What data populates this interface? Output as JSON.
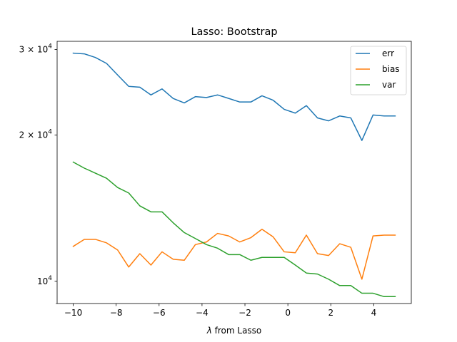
{
  "chart_data": {
    "type": "line",
    "title": "Lasso: Bootstrap",
    "xlabel_symbol": "λ",
    "xlabel_rest": " from Lasso",
    "ylabel": "",
    "yscale": "log",
    "xlim": [
      -10.75,
      5.75
    ],
    "ylim": [
      9000,
      31200
    ],
    "x_ticks": [
      -10,
      -8,
      -6,
      -4,
      -2,
      0,
      2,
      4
    ],
    "x_tick_labels": [
      "−10",
      "−8",
      "−6",
      "−4",
      "−2",
      "0",
      "2",
      "4"
    ],
    "y_ticks": [
      {
        "value": 10000,
        "base": "10",
        "exp": "4",
        "coef": ""
      },
      {
        "value": 20000,
        "base": "10",
        "exp": "4",
        "coef": "2 × "
      },
      {
        "value": 30000,
        "base": "10",
        "exp": "4",
        "coef": "3 × "
      }
    ],
    "grid": false,
    "legend_position": "top-right",
    "x": [
      -10.0,
      -9.483,
      -8.966,
      -8.448,
      -7.931,
      -7.414,
      -6.897,
      -6.379,
      -5.862,
      -5.345,
      -4.828,
      -4.31,
      -3.793,
      -3.276,
      -2.759,
      -2.241,
      -1.724,
      -1.207,
      -0.69,
      -0.172,
      0.345,
      0.862,
      1.379,
      1.897,
      2.414,
      2.931,
      3.448,
      3.966,
      4.483,
      5.0
    ],
    "series": [
      {
        "name": "err",
        "color": "#1f77b4",
        "values": [
          29500,
          29400,
          28900,
          28100,
          26600,
          25200,
          25100,
          24200,
          24900,
          23800,
          23300,
          24000,
          23900,
          24200,
          23800,
          23400,
          23400,
          24100,
          23600,
          22600,
          22200,
          23000,
          21700,
          21400,
          21900,
          21700,
          19500,
          22000,
          21900,
          21900
        ]
      },
      {
        "name": "bias",
        "color": "#ff7f0e",
        "values": [
          11800,
          12200,
          12200,
          12000,
          11600,
          10700,
          11400,
          10800,
          11500,
          11100,
          11050,
          11900,
          12050,
          12550,
          12400,
          12050,
          12300,
          12800,
          12350,
          11500,
          11450,
          12450,
          11400,
          11300,
          11950,
          11750,
          10100,
          12400,
          12450,
          12450
        ]
      },
      {
        "name": "var",
        "color": "#2ca02c",
        "values": [
          17600,
          17100,
          16700,
          16300,
          15600,
          15200,
          14300,
          13900,
          13900,
          13200,
          12600,
          12250,
          11900,
          11700,
          11350,
          11350,
          11050,
          11200,
          11200,
          11200,
          10800,
          10400,
          10350,
          10100,
          9800,
          9800,
          9450,
          9450,
          9300,
          9300
        ]
      }
    ]
  }
}
